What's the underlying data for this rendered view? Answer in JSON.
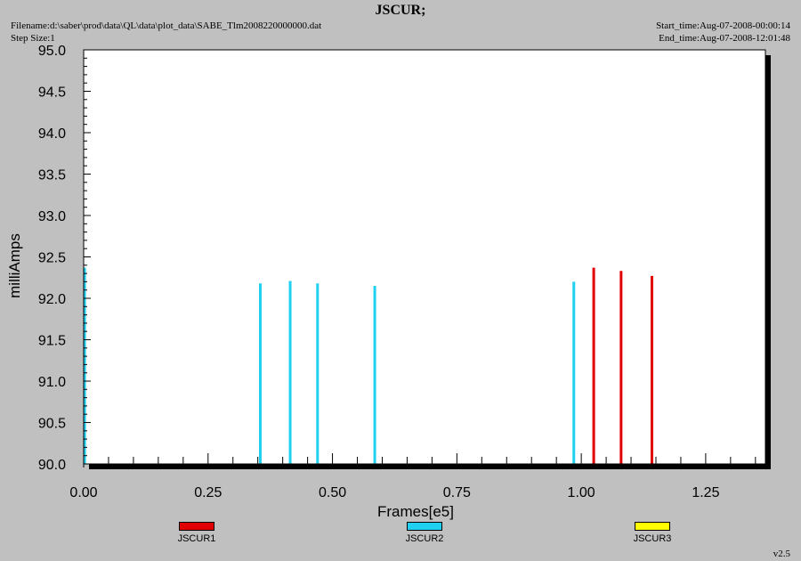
{
  "header": {
    "title": "JSCUR;",
    "filename_line": "Filename:d:\\saber\\prod\\data\\QL\\data\\plot_data\\SABE_Tlm2008220000000.dat",
    "step_line": "Step Size:1",
    "start_line": "Start_time:Aug-07-2008-00:00:14",
    "end_line": "End_time:Aug-07-2008-12:01:48"
  },
  "version": "v2.5",
  "colors": {
    "background": "#c0c0c0",
    "plot_bg": "#ffffff",
    "shadow": "#000000"
  },
  "chart_data": {
    "type": "bar",
    "title": "JSCUR;",
    "xlabel": "Frames[e5]",
    "ylabel": "milliAmps",
    "xlim": [
      0,
      1.37
    ],
    "ylim": [
      90.0,
      95.0
    ],
    "x_ticks": [
      "0.00",
      "0.25",
      "0.50",
      "0.75",
      "1.00",
      "1.25"
    ],
    "y_ticks": [
      "90.0",
      "90.5",
      "91.0",
      "91.5",
      "92.0",
      "92.5",
      "93.0",
      "93.5",
      "94.0",
      "94.5",
      "95.0"
    ],
    "grid": false,
    "legend_position": "bottom",
    "series": [
      {
        "name": "JSCUR1",
        "color": "#e00000",
        "x": [
          1.025,
          1.08,
          1.142
        ],
        "y": [
          92.37,
          92.33,
          92.27
        ]
      },
      {
        "name": "JSCUR2",
        "color": "#20d0f0",
        "x": [
          0.002,
          0.355,
          0.415,
          0.47,
          0.585,
          0.985
        ],
        "y": [
          92.37,
          92.18,
          92.21,
          92.18,
          92.15,
          92.2
        ]
      },
      {
        "name": "JSCUR3",
        "color": "#ffff00",
        "x": [],
        "y": []
      }
    ]
  }
}
